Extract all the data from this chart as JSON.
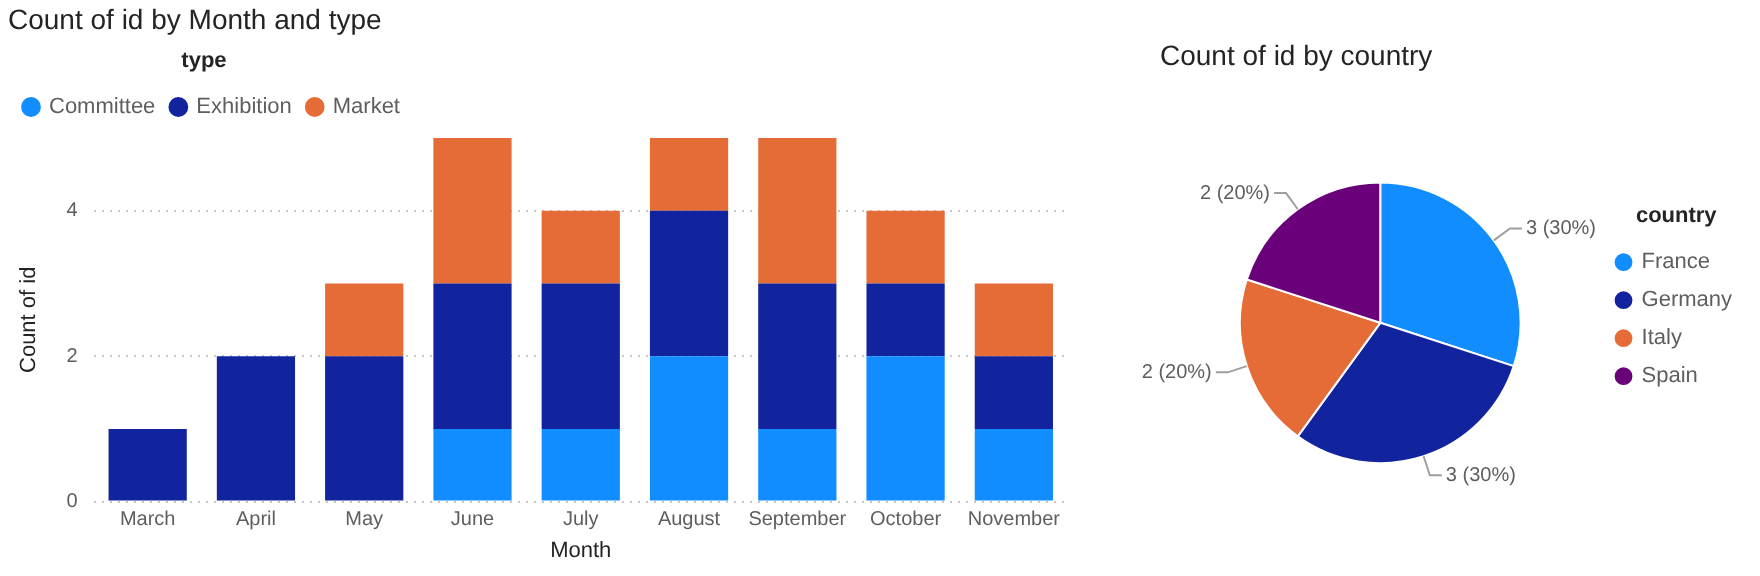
{
  "chart_data": [
    {
      "type": "bar",
      "title": "Count of id by Month and type",
      "xlabel": "Month",
      "ylabel": "Count of id",
      "legend_title": "type",
      "legend": "top left",
      "stacked": true,
      "grid": "y",
      "categories": [
        "March",
        "April",
        "May",
        "June",
        "July",
        "August",
        "September",
        "October",
        "November"
      ],
      "ylim": [
        0,
        5
      ],
      "yticks": [
        0,
        2,
        4
      ],
      "series": [
        {
          "name": "Committee",
          "color": "#118dff",
          "values": [
            null,
            null,
            null,
            1,
            1,
            2,
            1,
            2,
            1
          ]
        },
        {
          "name": "Exhibition",
          "color": "#12239e",
          "values": [
            1,
            2,
            2,
            2,
            2,
            2,
            2,
            1,
            1
          ]
        },
        {
          "name": "Market",
          "color": "#e66c37",
          "values": [
            null,
            null,
            1,
            2,
            1,
            1,
            2,
            1,
            1
          ]
        }
      ]
    },
    {
      "type": "pie",
      "title": "Count of id by country",
      "legend_title": "country",
      "legend": "right",
      "categories": [
        "France",
        "Germany",
        "Italy",
        "Spain"
      ],
      "values": [
        3,
        3,
        2,
        2
      ],
      "colors": [
        "#118dff",
        "#12239e",
        "#e66c37",
        "#6b007b"
      ],
      "value_labels": [
        "3 (30%)",
        "3 (30%)",
        "2 (20%)",
        "2 (20%)"
      ]
    }
  ]
}
